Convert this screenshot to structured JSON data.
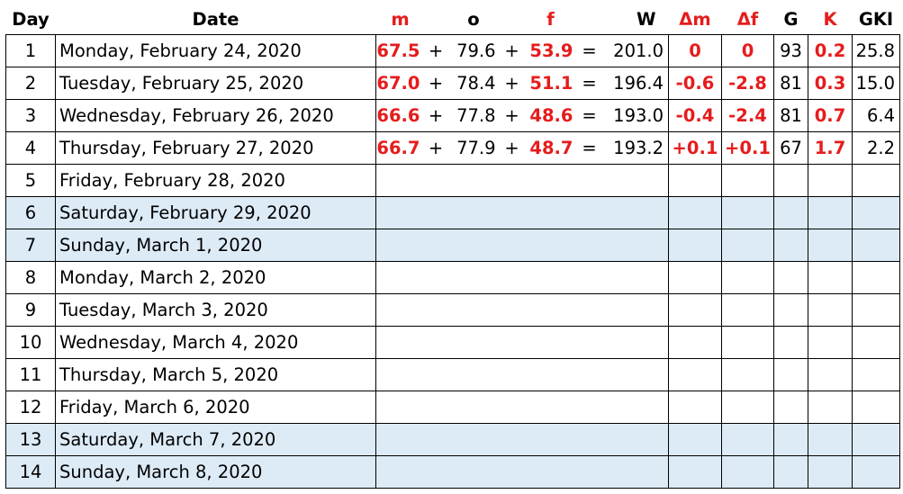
{
  "headers": {
    "day": "Day",
    "date": "Date",
    "m": "m",
    "o": "o",
    "f": "f",
    "w": "W",
    "dm": "Δm",
    "df": "Δf",
    "g": "G",
    "k": "K",
    "gki": "GKI"
  },
  "operators": {
    "plus": "+",
    "equals": "="
  },
  "colors": {
    "accent_red": "#e61c1c",
    "weekend_fill": "#ddebf7"
  },
  "rows": [
    {
      "day": "1",
      "date": "Monday, February 24, 2020",
      "m": "67.5",
      "o": "79.6",
      "f": "53.9",
      "w": "201.0",
      "dm": "0",
      "df": "0",
      "g": "93",
      "k": "0.2",
      "gki": "25.8",
      "weekend": false
    },
    {
      "day": "2",
      "date": "Tuesday, February 25, 2020",
      "m": "67.0",
      "o": "78.4",
      "f": "51.1",
      "w": "196.4",
      "dm": "-0.6",
      "df": "-2.8",
      "g": "81",
      "k": "0.3",
      "gki": "15.0",
      "weekend": false
    },
    {
      "day": "3",
      "date": "Wednesday, February 26, 2020",
      "m": "66.6",
      "o": "77.8",
      "f": "48.6",
      "w": "193.0",
      "dm": "-0.4",
      "df": "-2.4",
      "g": "81",
      "k": "0.7",
      "gki": "6.4",
      "weekend": false
    },
    {
      "day": "4",
      "date": "Thursday, February 27, 2020",
      "m": "66.7",
      "o": "77.9",
      "f": "48.7",
      "w": "193.2",
      "dm": "+0.1",
      "df": "+0.1",
      "g": "67",
      "k": "1.7",
      "gki": "2.2",
      "weekend": false
    },
    {
      "day": "5",
      "date": "Friday, February 28, 2020",
      "weekend": false
    },
    {
      "day": "6",
      "date": "Saturday, February 29, 2020",
      "weekend": true
    },
    {
      "day": "7",
      "date": "Sunday, March 1, 2020",
      "weekend": true
    },
    {
      "day": "8",
      "date": "Monday, March 2, 2020",
      "weekend": false
    },
    {
      "day": "9",
      "date": "Tuesday, March 3, 2020",
      "weekend": false
    },
    {
      "day": "10",
      "date": "Wednesday, March 4, 2020",
      "weekend": false
    },
    {
      "day": "11",
      "date": "Thursday, March 5, 2020",
      "weekend": false
    },
    {
      "day": "12",
      "date": "Friday, March 6, 2020",
      "weekend": false
    },
    {
      "day": "13",
      "date": "Saturday, March 7, 2020",
      "weekend": true
    },
    {
      "day": "14",
      "date": "Sunday, March 8, 2020",
      "weekend": true
    }
  ]
}
